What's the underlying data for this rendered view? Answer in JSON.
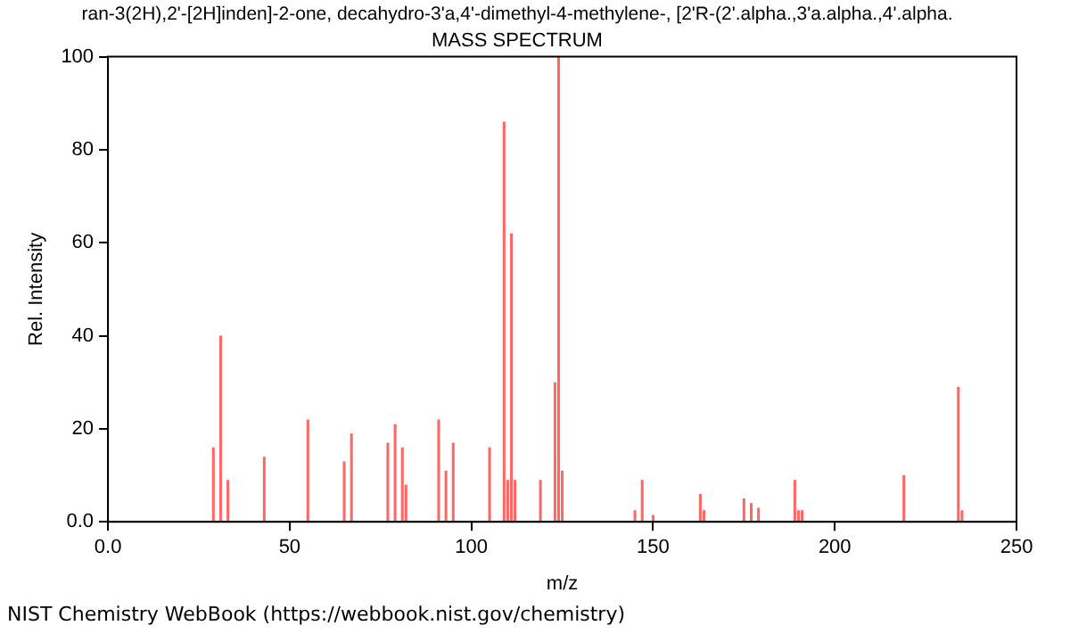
{
  "chart_data": {
    "type": "bar",
    "title": "ran-3(2H),2'-[2H]inden]-2-one, decahydro-3'a,4'-dimethyl-4-methylene-, [2'R-(2'.alpha.,3'a.alpha.,4'.alpha.",
    "subtitle": "MASS SPECTRUM",
    "xlabel": "m/z",
    "ylabel": "Rel. Intensity",
    "x": [
      29,
      31,
      33,
      43,
      55,
      65,
      67,
      77,
      79,
      81,
      82,
      91,
      93,
      95,
      105,
      109,
      110,
      111,
      112,
      119,
      123,
      124,
      125,
      145,
      147,
      150,
      163,
      164,
      175,
      177,
      179,
      189,
      190,
      191,
      219,
      234,
      235
    ],
    "series": [
      {
        "color": "#ff6666",
        "values": [
          16,
          40,
          9,
          14,
          22,
          13,
          19,
          17,
          21,
          16,
          8,
          22,
          11,
          17,
          16,
          86,
          9,
          62,
          9,
          9,
          30,
          100,
          11,
          2.5,
          9,
          1.5,
          6,
          2.5,
          5,
          4,
          3,
          9,
          2.5,
          2.5,
          10,
          29,
          2.5
        ]
      }
    ],
    "xlim": [
      0,
      250
    ],
    "xticks": [
      {
        "value": 0,
        "label": "0.0"
      },
      50,
      100,
      150,
      200,
      250
    ],
    "ylim": [
      0,
      100
    ],
    "yticks": [
      {
        "value": 0,
        "label": "0.0"
      },
      20,
      40,
      60,
      80,
      100
    ],
    "grid": false,
    "legend": false,
    "annotations": [
      "NIST Chemistry WebBook (https://webbook.nist.gov/chemistry)"
    ]
  }
}
